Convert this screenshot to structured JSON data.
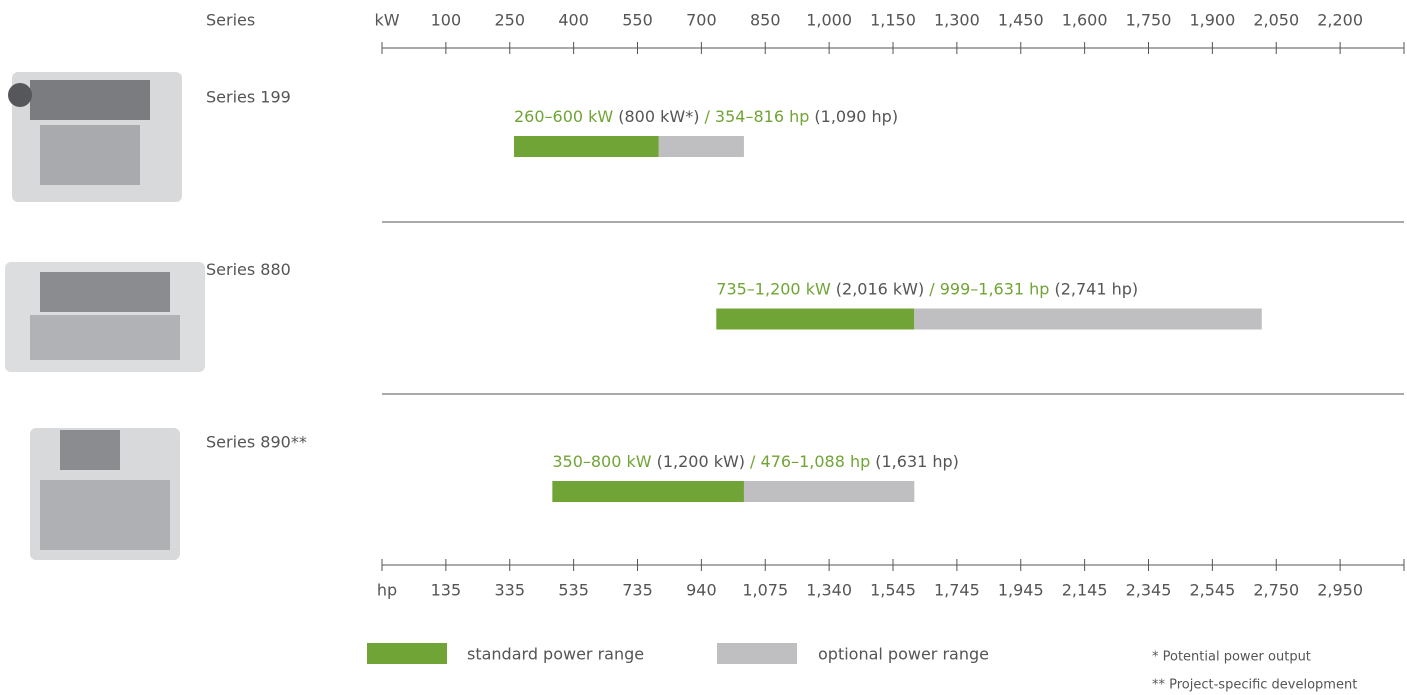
{
  "chart_data": {
    "type": "range-bar",
    "row_header": "Series",
    "x_unit": "kW",
    "xlim": [
      -50,
      2350
    ],
    "xticks": [
      100,
      250,
      400,
      550,
      700,
      850,
      {
        "value": 1000,
        "label": "1,000"
      },
      {
        "value": 1150,
        "label": "1,150"
      },
      {
        "value": 1300,
        "label": "1,300"
      },
      {
        "value": 1450,
        "label": "1,450"
      },
      {
        "value": 1600,
        "label": "1,600"
      },
      {
        "value": 1750,
        "label": "1,750"
      },
      {
        "value": 1900,
        "label": "1,900"
      },
      {
        "value": 2050,
        "label": "2,050"
      },
      {
        "value": 2200,
        "label": "2,200"
      }
    ],
    "x2_unit": "hp",
    "x2ticks": [
      135,
      335,
      535,
      735,
      940,
      {
        "value": 1075,
        "label": "1,075"
      },
      {
        "value": 1340,
        "label": "1,340"
      },
      {
        "value": 1545,
        "label": "1,545"
      },
      {
        "value": 1745,
        "label": "1,745"
      },
      {
        "value": 1945,
        "label": "1,945"
      },
      {
        "value": 2145,
        "label": "2,145"
      },
      {
        "value": 2345,
        "label": "2,345"
      },
      {
        "value": 2545,
        "label": "2,545"
      },
      {
        "value": 2750,
        "label": "2,750"
      },
      {
        "value": 2950,
        "label": "2,950"
      }
    ],
    "standard_name": "standard power range",
    "standard_color": "#71a436",
    "optional_name": "optional power range",
    "optional_color": "#bfbfc1",
    "rows": [
      {
        "name": "Series 199",
        "standard": [
          260,
          600
        ],
        "optional_max": 800,
        "label_standard_kw": "260–600 kW",
        "label_optional_kw": "(800 kW*)",
        "label_standard_hp": "/ 354–816 hp",
        "label_optional_hp": "(1,090 hp)"
      },
      {
        "name": "Series 880",
        "standard": [
          735,
          1200
        ],
        "optional_max": 2016,
        "label_standard_kw": "735–1,200 kW",
        "label_optional_kw": "(2,016 kW)",
        "label_standard_hp": "/ 999–1,631 hp",
        "label_optional_hp": "(2,741 hp)"
      },
      {
        "name": "Series 890**",
        "standard": [
          350,
          800
        ],
        "optional_max": 1200,
        "label_standard_kw": "350–800 kW",
        "label_optional_kw": "(1,200 kW)",
        "label_standard_hp": "/ 476–1,088 hp",
        "label_optional_hp": "(1,631 hp)"
      }
    ],
    "footnotes": [
      "* Potential power output",
      "** Project-specific development"
    ]
  }
}
